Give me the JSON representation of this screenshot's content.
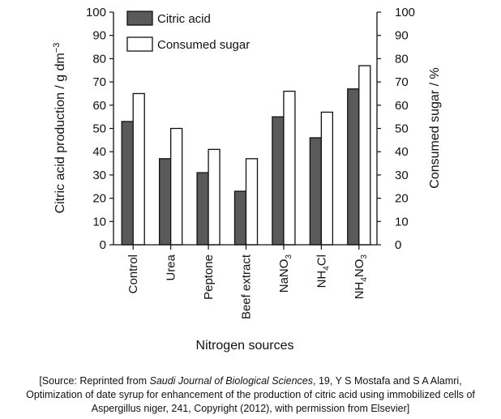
{
  "chart_data": {
    "type": "bar",
    "xlabel": "Nitrogen sources",
    "ylabel_left": "Citric acid production / g dm⁻³",
    "ylabel_right": "Consumed sugar / %",
    "ylim_left": [
      0,
      100
    ],
    "ylim_right": [
      0,
      100
    ],
    "yticks": [
      "0",
      "10",
      "20",
      "30",
      "40",
      "50",
      "60",
      "70",
      "80",
      "90",
      "100"
    ],
    "categories": [
      {
        "pre": "Control"
      },
      {
        "pre": "Urea"
      },
      {
        "pre": "Peptone"
      },
      {
        "pre": "Beef extract"
      },
      {
        "pre": "NaNO",
        "sub": "3",
        "post": ""
      },
      {
        "pre": "NH",
        "sub": "4",
        "post": "Cl"
      },
      {
        "pre": "NH",
        "sub": "4",
        "post": "NO",
        "sub2": "3"
      }
    ],
    "series": [
      {
        "name": "Citric acid",
        "color": "#5a5a5a",
        "values": [
          53,
          37,
          31,
          23,
          55,
          46,
          67
        ]
      },
      {
        "name": "Consumed sugar",
        "color": "#ffffff",
        "values": [
          65,
          50,
          41,
          37,
          66,
          57,
          77
        ]
      }
    ],
    "legend_position": "top-left",
    "grid": false
  },
  "source_note": {
    "line1_pre": "[Source: Reprinted from ",
    "line1_journal": "Saudi Journal of Biological Sciences",
    "line1_post": ", 19, Y S Mostafa and S A Alamri,",
    "line2": "Optimization of date syrup for enhancement of the production of citric acid using immobilized cells of",
    "line3": "Aspergillus niger, 241, Copyright (2012), with permission from Elsevier]"
  }
}
